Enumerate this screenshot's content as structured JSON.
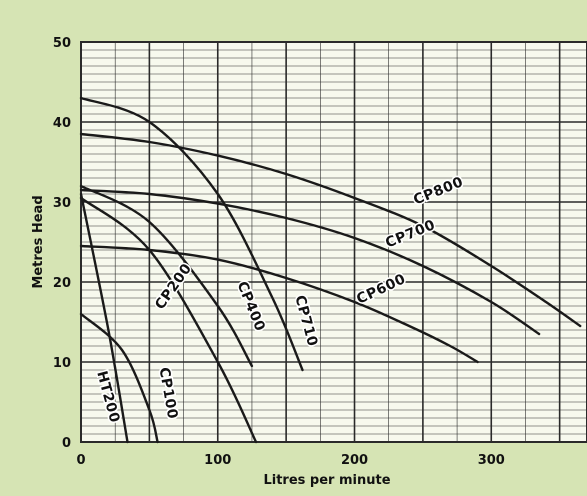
{
  "chart_data": {
    "type": "line",
    "title": "",
    "xlabel": "Litres per minute",
    "ylabel": "Metres Head",
    "xlim": [
      0,
      370
    ],
    "ylim": [
      0,
      50
    ],
    "xticks": [
      0,
      100,
      200,
      300
    ],
    "yticks": [
      0,
      10,
      20,
      30,
      40,
      50
    ],
    "grid": true,
    "colors": {
      "background": "#d6e4b4",
      "plot": "#f7f9ee",
      "grid": "#2a2a2a",
      "curve": "#1a1a1a"
    },
    "series": [
      {
        "name": "CP800",
        "x": [
          0,
          50,
          100,
          150,
          200,
          250,
          300,
          340,
          365
        ],
        "y": [
          38.5,
          37.5,
          35.8,
          33.5,
          30.5,
          27.0,
          22.0,
          17.5,
          14.5
        ]
      },
      {
        "name": "CP700",
        "x": [
          0,
          50,
          100,
          150,
          200,
          250,
          300,
          335
        ],
        "y": [
          31.5,
          31.0,
          29.8,
          28.0,
          25.5,
          22.0,
          17.5,
          13.5
        ]
      },
      {
        "name": "CP600",
        "x": [
          0,
          50,
          100,
          150,
          200,
          240,
          270,
          290
        ],
        "y": [
          24.5,
          24.0,
          22.8,
          20.5,
          17.5,
          14.5,
          12.0,
          10.0
        ]
      },
      {
        "name": "CP710",
        "x": [
          0,
          50,
          100,
          140,
          162
        ],
        "y": [
          43.0,
          40.0,
          31.0,
          18.0,
          9.0
        ]
      },
      {
        "name": "CP400",
        "x": [
          0,
          50,
          100,
          125
        ],
        "y": [
          32.0,
          27.5,
          17.0,
          9.5
        ]
      },
      {
        "name": "CP200",
        "x": [
          0,
          50,
          100,
          128
        ],
        "y": [
          30.5,
          24.0,
          10.0,
          0.0
        ]
      },
      {
        "name": "CP100",
        "x": [
          0,
          30,
          50,
          56
        ],
        "y": [
          16.0,
          11.5,
          4.0,
          0.0
        ]
      },
      {
        "name": "HT200",
        "x": [
          0,
          20,
          34
        ],
        "y": [
          31.0,
          14.0,
          0.0
        ]
      }
    ]
  }
}
